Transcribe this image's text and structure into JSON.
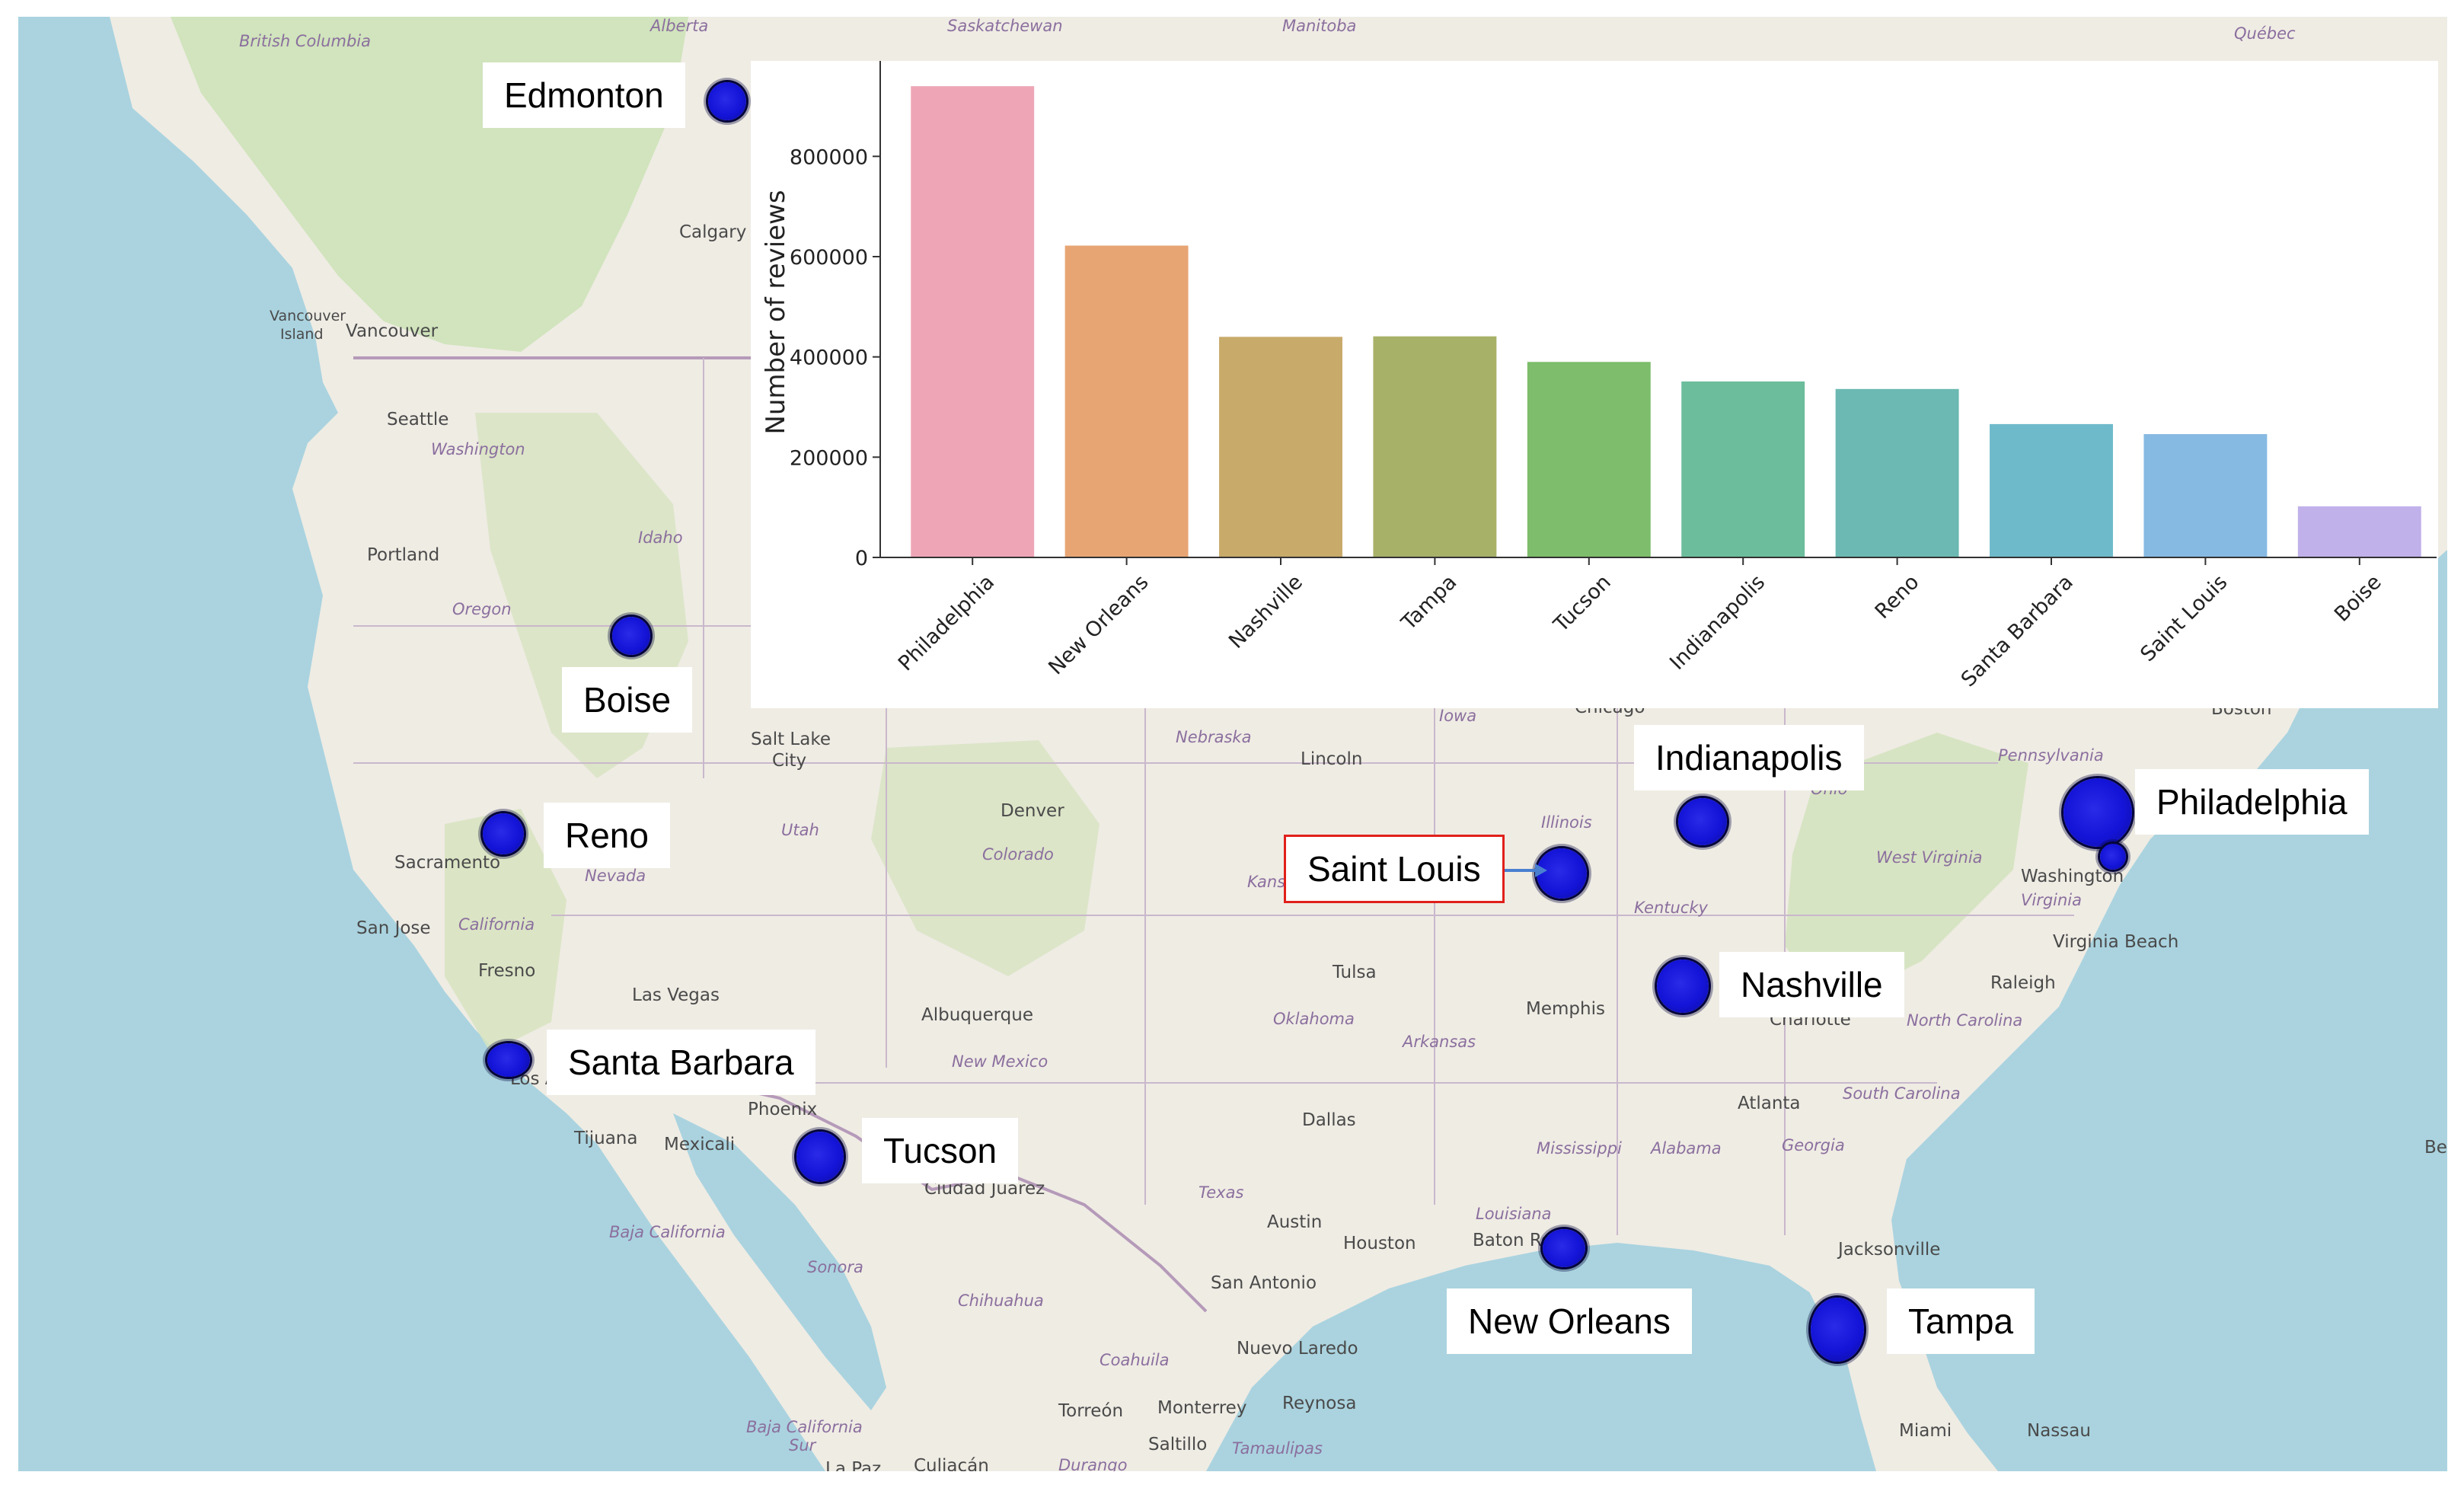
{
  "basemap": {
    "places": [
      {
        "id": "alberta",
        "text": "Alberta",
        "kind": "province"
      },
      {
        "id": "saskatchewan",
        "text": "Saskatchewan",
        "kind": "province"
      },
      {
        "id": "manitoba",
        "text": "Manitoba",
        "kind": "province"
      },
      {
        "id": "quebec",
        "text": "Québec",
        "kind": "province"
      },
      {
        "id": "british-columbia",
        "text": "British Columbia",
        "kind": "province"
      },
      {
        "id": "calgary",
        "text": "Calgary",
        "kind": "city"
      },
      {
        "id": "vancouver-island",
        "text": "Vancouver",
        "kind": "city"
      },
      {
        "id": "island",
        "text": "Island",
        "kind": "city"
      },
      {
        "id": "vancouver",
        "text": "Vancouver",
        "kind": "city"
      },
      {
        "id": "seattle",
        "text": "Seattle",
        "kind": "city"
      },
      {
        "id": "washington",
        "text": "Washington",
        "kind": "state"
      },
      {
        "id": "portland",
        "text": "Portland",
        "kind": "city"
      },
      {
        "id": "idaho",
        "text": "Idaho",
        "kind": "state"
      },
      {
        "id": "oregon",
        "text": "Oregon",
        "kind": "state"
      },
      {
        "id": "salt-lake",
        "text": "Salt Lake",
        "kind": "city"
      },
      {
        "id": "city",
        "text": "City",
        "kind": "city"
      },
      {
        "id": "utah",
        "text": "Utah",
        "kind": "state"
      },
      {
        "id": "nebraska",
        "text": "Nebraska",
        "kind": "state"
      },
      {
        "id": "iowa",
        "text": "Iowa",
        "kind": "state"
      },
      {
        "id": "chicago",
        "text": "Chicago",
        "kind": "city"
      },
      {
        "id": "boston",
        "text": "Boston",
        "kind": "city"
      },
      {
        "id": "pennsylvania",
        "text": "Pennsylvania",
        "kind": "state"
      },
      {
        "id": "lincoln",
        "text": "Lincoln",
        "kind": "city"
      },
      {
        "id": "denver",
        "text": "Denver",
        "kind": "city"
      },
      {
        "id": "colorado",
        "text": "Colorado",
        "kind": "state"
      },
      {
        "id": "sacramento",
        "text": "Sacramento",
        "kind": "city"
      },
      {
        "id": "nevada",
        "text": "Nevada",
        "kind": "state"
      },
      {
        "id": "illinois",
        "text": "Illinois",
        "kind": "state"
      },
      {
        "id": "ohio",
        "text": "Ohio",
        "kind": "state"
      },
      {
        "id": "west-virginia",
        "text": "West Virginia",
        "kind": "state"
      },
      {
        "id": "washington-dc",
        "text": "Washington",
        "kind": "city"
      },
      {
        "id": "virginia",
        "text": "Virginia",
        "kind": "state"
      },
      {
        "id": "kentucky",
        "text": "Kentucky",
        "kind": "state"
      },
      {
        "id": "kansas",
        "text": "Kansa",
        "kind": "state"
      },
      {
        "id": "san-jose",
        "text": "San Jose",
        "kind": "city"
      },
      {
        "id": "california",
        "text": "California",
        "kind": "state"
      },
      {
        "id": "fresno",
        "text": "Fresno",
        "kind": "city"
      },
      {
        "id": "virginia-beach",
        "text": "Virginia Beach",
        "kind": "city"
      },
      {
        "id": "tulsa",
        "text": "Tulsa",
        "kind": "city"
      },
      {
        "id": "las-vegas",
        "text": "Las Vegas",
        "kind": "city"
      },
      {
        "id": "albuquerque",
        "text": "Albuquerque",
        "kind": "city"
      },
      {
        "id": "memphis",
        "text": "Memphis",
        "kind": "city"
      },
      {
        "id": "raleigh",
        "text": "Raleigh",
        "kind": "city"
      },
      {
        "id": "oklahoma",
        "text": "Oklahoma",
        "kind": "state"
      },
      {
        "id": "arkansas",
        "text": "Arkansas",
        "kind": "state"
      },
      {
        "id": "charlotte",
        "text": "Charlotte",
        "kind": "city"
      },
      {
        "id": "north-carolina",
        "text": "North Carolina",
        "kind": "state"
      },
      {
        "id": "new-mexico",
        "text": "New Mexico",
        "kind": "state"
      },
      {
        "id": "los-angeles",
        "text": "Los Angeles",
        "kind": "city"
      },
      {
        "id": "south-carolina",
        "text": "South Carolina",
        "kind": "state"
      },
      {
        "id": "phoenix",
        "text": "Phoenix",
        "kind": "city"
      },
      {
        "id": "dallas",
        "text": "Dallas",
        "kind": "city"
      },
      {
        "id": "atlanta",
        "text": "Atlanta",
        "kind": "city"
      },
      {
        "id": "tijuana",
        "text": "Tijuana",
        "kind": "city"
      },
      {
        "id": "mexicali",
        "text": "Mexicali",
        "kind": "city"
      },
      {
        "id": "mississippi",
        "text": "Mississippi",
        "kind": "state"
      },
      {
        "id": "alabama",
        "text": "Alabama",
        "kind": "state"
      },
      {
        "id": "georgia",
        "text": "Georgia",
        "kind": "state"
      },
      {
        "id": "ciudad-juarez",
        "text": "Ciudad Juárez",
        "kind": "city"
      },
      {
        "id": "texas",
        "text": "Texas",
        "kind": "state"
      },
      {
        "id": "louisiana",
        "text": "Louisiana",
        "kind": "state"
      },
      {
        "id": "austin",
        "text": "Austin",
        "kind": "city"
      },
      {
        "id": "baja-california",
        "text": "Baja California",
        "kind": "state"
      },
      {
        "id": "houston",
        "text": "Houston",
        "kind": "city"
      },
      {
        "id": "baton-rouge",
        "text": "Baton Ro",
        "kind": "city"
      },
      {
        "id": "jacksonville",
        "text": "Jacksonville",
        "kind": "city"
      },
      {
        "id": "sonora",
        "text": "Sonora",
        "kind": "state"
      },
      {
        "id": "san-antonio",
        "text": "San Antonio",
        "kind": "city"
      },
      {
        "id": "chihuahua",
        "text": "Chihuahua",
        "kind": "state"
      },
      {
        "id": "coahuila",
        "text": "Coahuila",
        "kind": "state"
      },
      {
        "id": "nuevo-laredo",
        "text": "Nuevo Laredo",
        "kind": "city"
      },
      {
        "id": "torreon",
        "text": "Torreón",
        "kind": "city"
      },
      {
        "id": "monterrey",
        "text": "Monterrey",
        "kind": "city"
      },
      {
        "id": "reynosa",
        "text": "Reynosa",
        "kind": "city"
      },
      {
        "id": "saltillo",
        "text": "Saltillo",
        "kind": "city"
      },
      {
        "id": "tamaulipas",
        "text": "Tamaulipas",
        "kind": "state"
      },
      {
        "id": "baja-california-sur",
        "text": "Baja California",
        "kind": "state"
      },
      {
        "id": "sur",
        "text": "Sur",
        "kind": "state"
      },
      {
        "id": "la-paz",
        "text": "La Paz",
        "kind": "city"
      },
      {
        "id": "culiacan",
        "text": "Culiacán",
        "kind": "city"
      },
      {
        "id": "durango",
        "text": "Durango",
        "kind": "state"
      },
      {
        "id": "miami",
        "text": "Miami",
        "kind": "city"
      },
      {
        "id": "nassau",
        "text": "Nassau",
        "kind": "city"
      },
      {
        "id": "be",
        "text": "Be",
        "kind": "city"
      }
    ]
  },
  "cities": [
    {
      "id": "edmonton",
      "label": "Edmonton",
      "highlighted": false
    },
    {
      "id": "boise",
      "label": "Boise",
      "highlighted": false
    },
    {
      "id": "reno",
      "label": "Reno",
      "highlighted": false
    },
    {
      "id": "santa-barbara",
      "label": "Santa Barbara",
      "highlighted": false
    },
    {
      "id": "tucson",
      "label": "Tucson",
      "highlighted": false
    },
    {
      "id": "saint-louis",
      "label": "Saint Louis",
      "highlighted": true
    },
    {
      "id": "indianapolis",
      "label": "Indianapolis",
      "highlighted": false
    },
    {
      "id": "nashville",
      "label": "Nashville",
      "highlighted": false
    },
    {
      "id": "philadelphia",
      "label": "Philadelphia",
      "highlighted": false
    },
    {
      "id": "new-orleans",
      "label": "New Orleans",
      "highlighted": false
    },
    {
      "id": "tampa",
      "label": "Tampa",
      "highlighted": false
    }
  ],
  "colors": {
    "marker": "#1616dc",
    "highlight_border": "#e0201a",
    "water": "#aad3df",
    "land": "#efece4"
  },
  "chart_data": {
    "type": "bar",
    "title": "",
    "xlabel": "",
    "ylabel": "Number of reviews",
    "categories": [
      "Philadelphia",
      "New Orleans",
      "Nashville",
      "Tampa",
      "Tucson",
      "Indianapolis",
      "Reno",
      "Santa Barbara",
      "Saint Louis",
      "Boise"
    ],
    "values": [
      940000,
      622000,
      440000,
      441000,
      390000,
      351000,
      336000,
      266000,
      246000,
      102000
    ],
    "colors": [
      "#eea6b6",
      "#e7a574",
      "#c8aa6a",
      "#a8b168",
      "#7dbd6b",
      "#6cbd9c",
      "#6bb9b2",
      "#6ebaca",
      "#86bae2",
      "#c1b1ea"
    ],
    "ylim": [
      0,
      960000
    ],
    "yticks": [
      0,
      200000,
      400000,
      600000,
      800000
    ],
    "ytick_labels": [
      "0",
      "200000",
      "400000",
      "600000",
      "800000"
    ],
    "grid": false,
    "legend": "none"
  }
}
